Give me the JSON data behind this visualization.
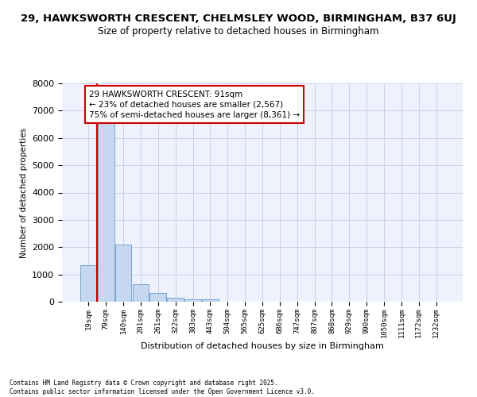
{
  "title_line1": "29, HAWKSWORTH CRESCENT, CHELMSLEY WOOD, BIRMINGHAM, B37 6UJ",
  "title_line2": "Size of property relative to detached houses in Birmingham",
  "xlabel": "Distribution of detached houses by size in Birmingham",
  "ylabel": "Number of detached properties",
  "categories": [
    "19sqm",
    "79sqm",
    "140sqm",
    "201sqm",
    "261sqm",
    "322sqm",
    "383sqm",
    "443sqm",
    "504sqm",
    "565sqm",
    "625sqm",
    "686sqm",
    "747sqm",
    "807sqm",
    "868sqm",
    "929sqm",
    "990sqm",
    "1050sqm",
    "1111sqm",
    "1172sqm",
    "1232sqm"
  ],
  "values": [
    1350,
    6700,
    2100,
    650,
    320,
    150,
    90,
    90,
    0,
    0,
    0,
    0,
    0,
    0,
    0,
    0,
    0,
    0,
    0,
    0,
    0
  ],
  "bar_color": "#c5d8f0",
  "bar_edge_color": "#6899c8",
  "annotation_text": "29 HAWKSWORTH CRESCENT: 91sqm\n← 23% of detached houses are smaller (2,567)\n75% of semi-detached houses are larger (8,361) →",
  "annotation_box_color": "#cc0000",
  "vline_color": "#cc0000",
  "vline_x": 1.0,
  "ylim": [
    0,
    8000
  ],
  "yticks": [
    0,
    1000,
    2000,
    3000,
    4000,
    5000,
    6000,
    7000,
    8000
  ],
  "grid_color": "#c8d0e8",
  "bg_color": "#eef2fc",
  "footer_text": "Contains HM Land Registry data © Crown copyright and database right 2025.\nContains public sector information licensed under the Open Government Licence v3.0.",
  "title_fontsize": 9.5,
  "subtitle_fontsize": 8.5,
  "annotation_fontsize": 7.5
}
